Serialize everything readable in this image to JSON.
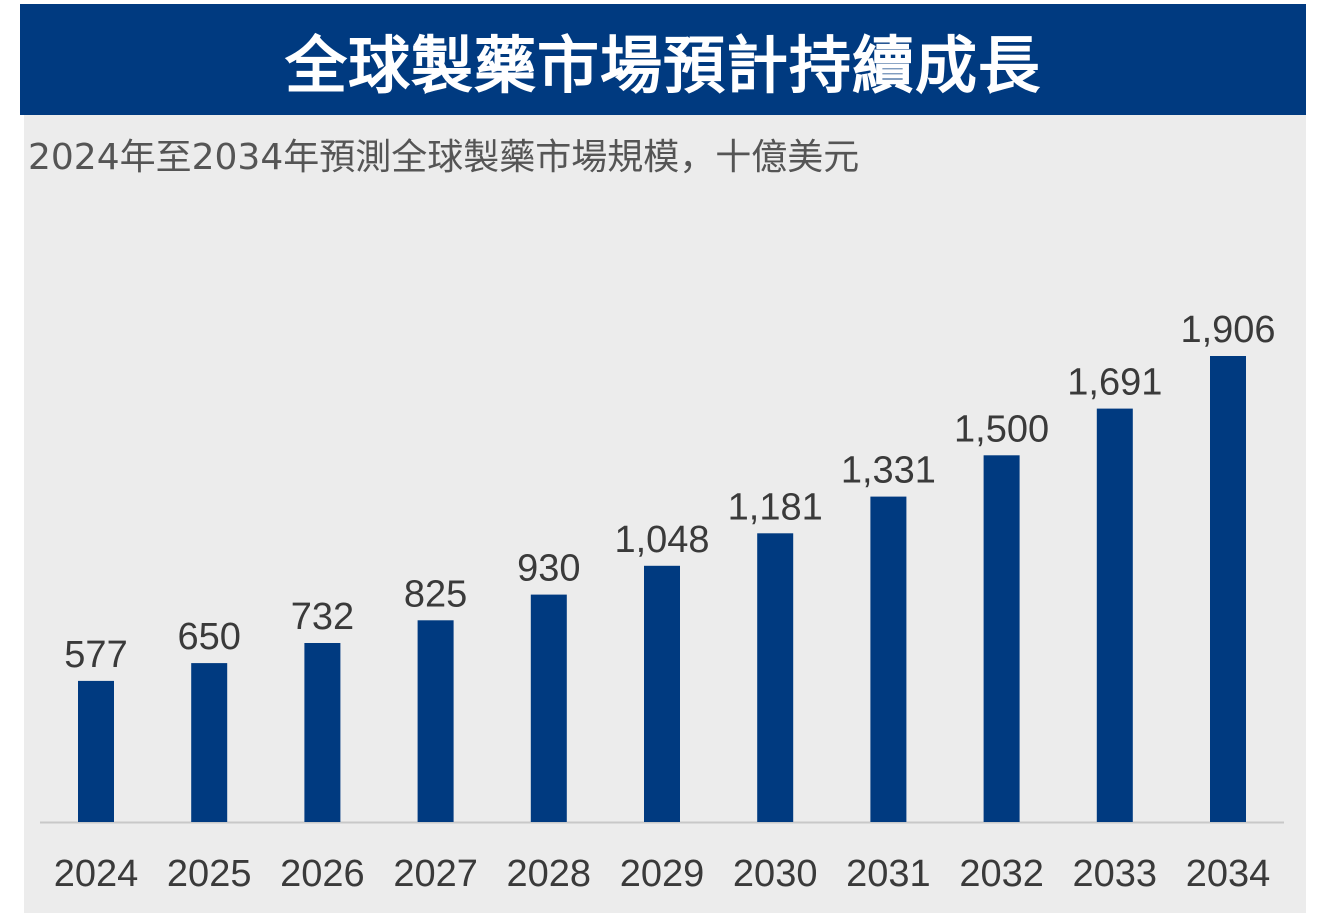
{
  "header": {
    "title": "全球製藥市場預計持續成長"
  },
  "chart_data": {
    "type": "bar",
    "title": "全球製藥市場預計持續成長",
    "subtitle": "2024年至2034年預測全球製藥市場規模，十億美元",
    "categories": [
      "2024",
      "2025",
      "2026",
      "2027",
      "2028",
      "2029",
      "2030",
      "2031",
      "2032",
      "2033",
      "2034"
    ],
    "values": [
      577,
      650,
      732,
      825,
      930,
      1048,
      1181,
      1331,
      1500,
      1691,
      1906
    ],
    "value_labels": [
      "577",
      "650",
      "732",
      "825",
      "930",
      "1,048",
      "1,181",
      "1,331",
      "1,500",
      "1,691",
      "1,906"
    ],
    "xlabel": "",
    "ylabel": "",
    "ylim": [
      0,
      1906
    ],
    "grid": false,
    "legend": "none",
    "bar_color": "#003a80",
    "axis_color": "#c8c8c8"
  }
}
